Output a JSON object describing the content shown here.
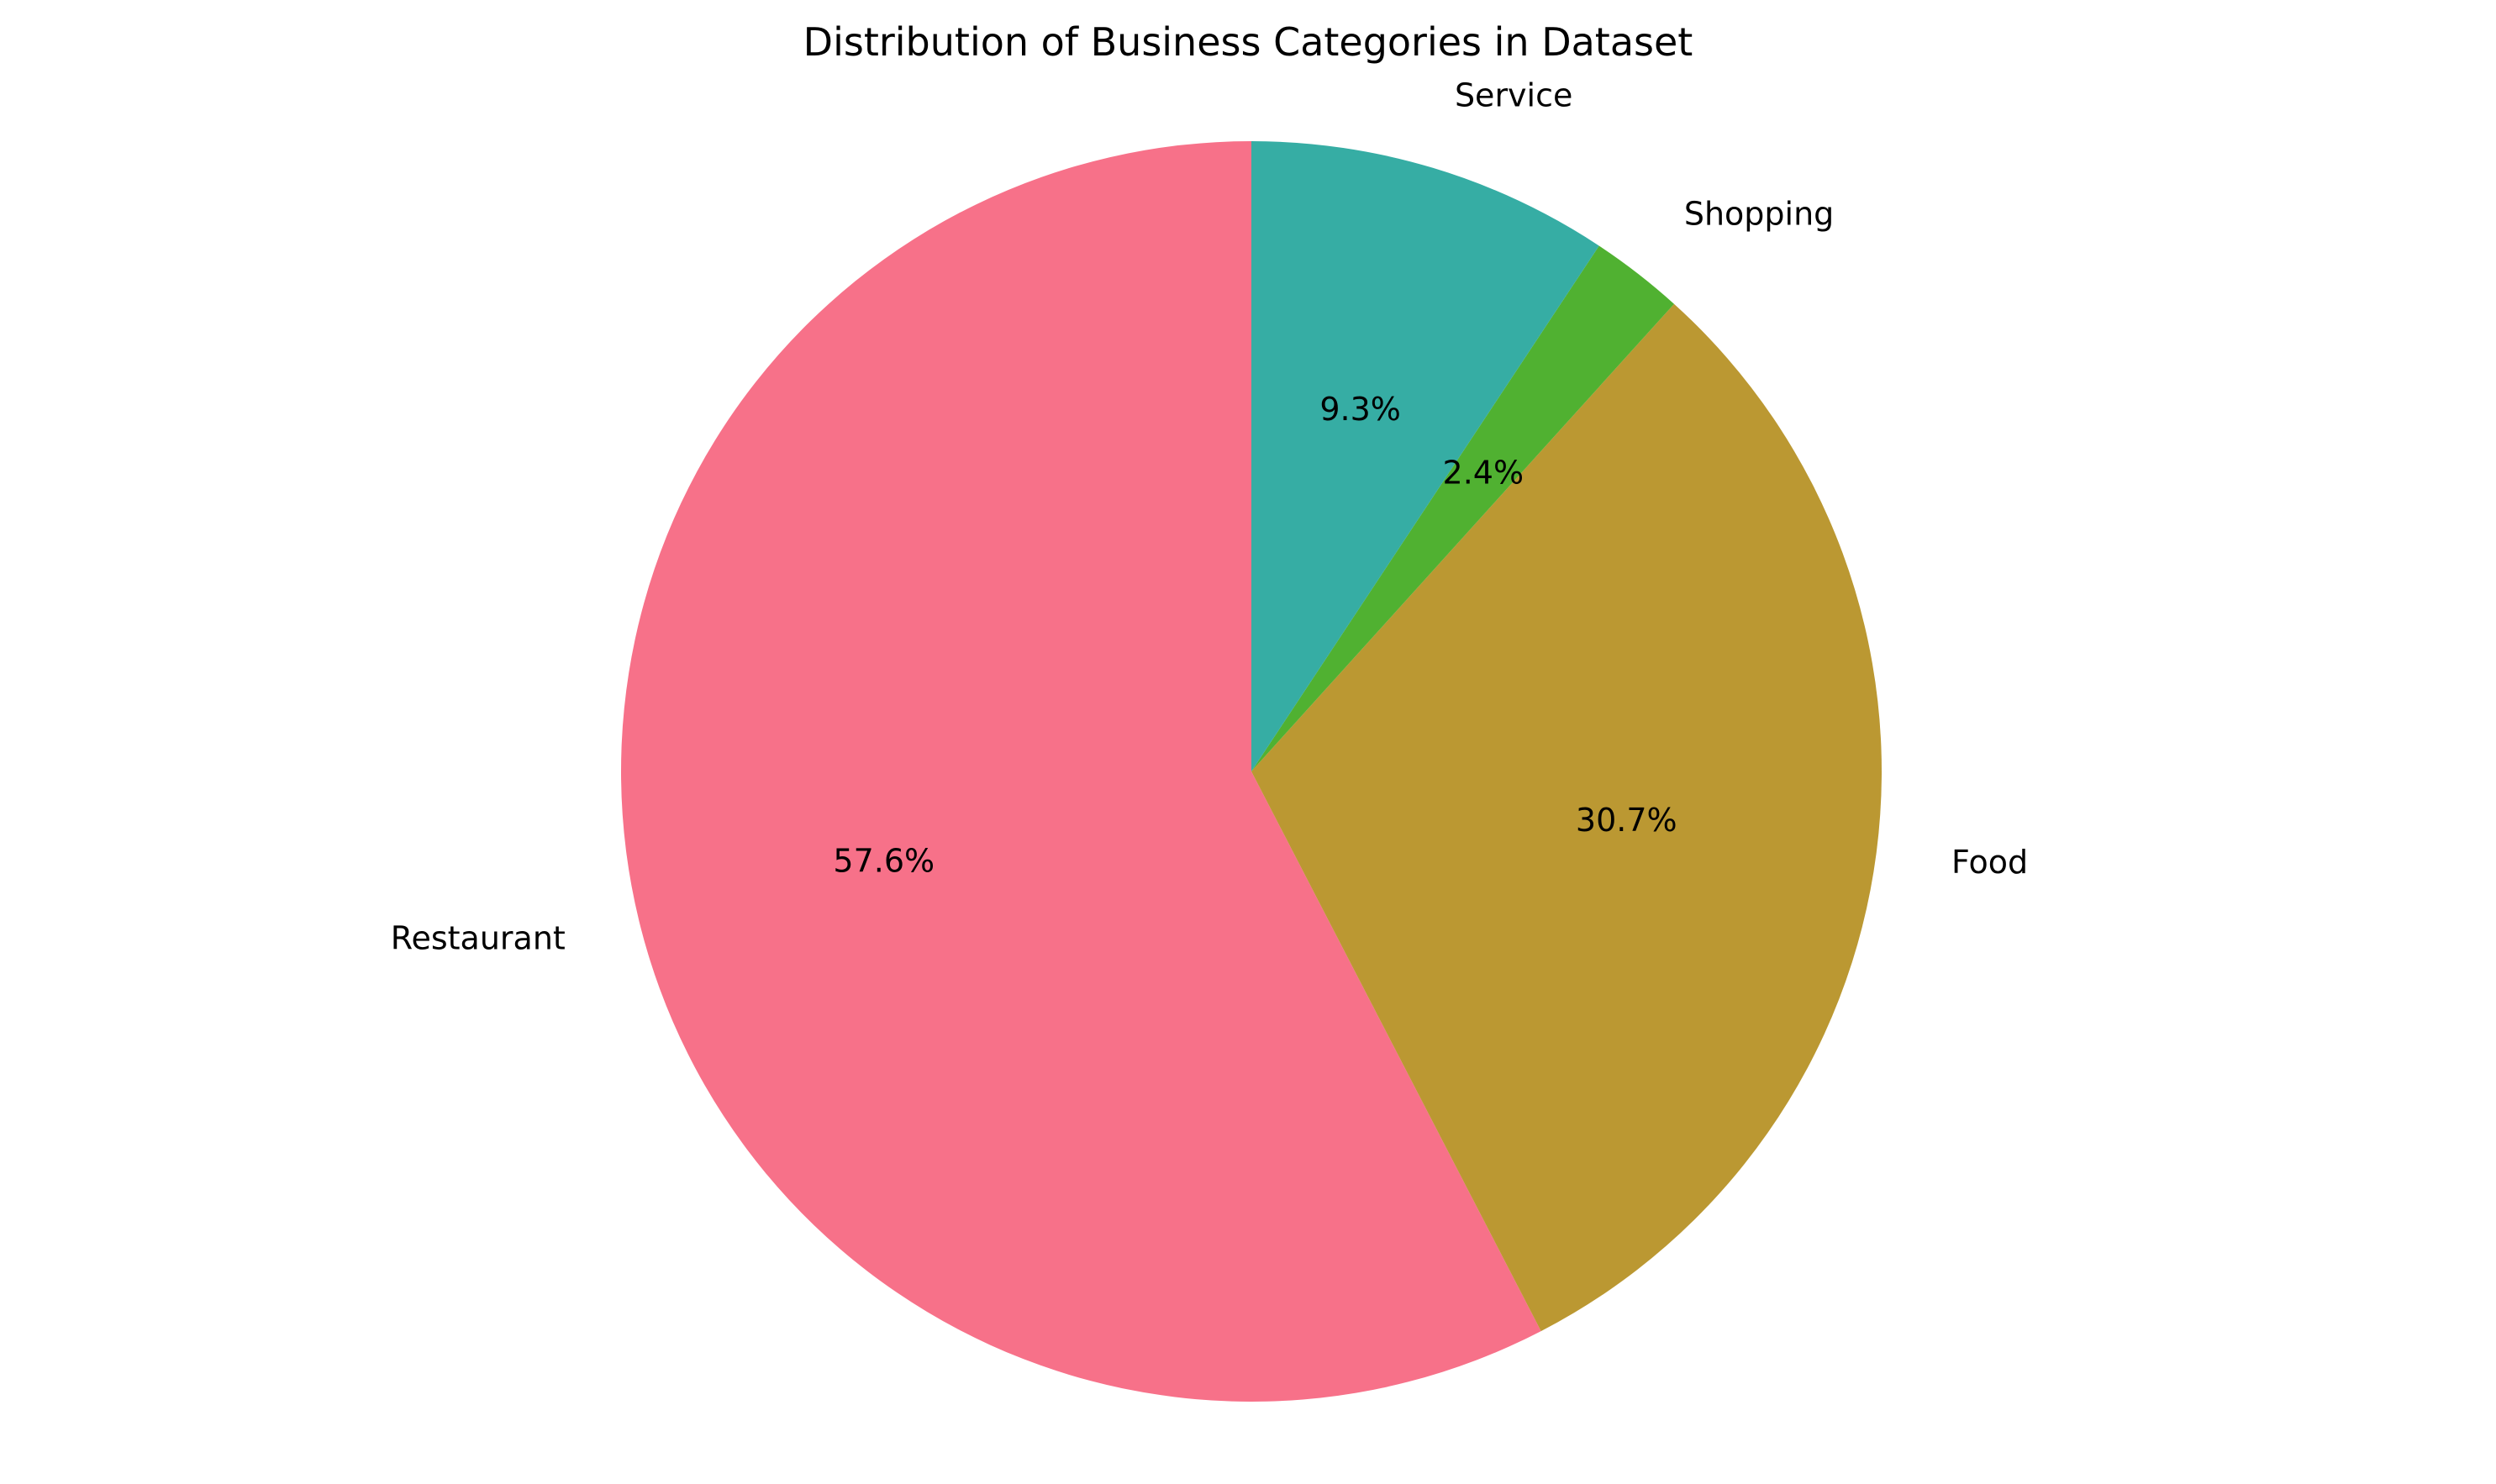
{
  "chart_data": {
    "type": "pie",
    "title": "Distribution of Business Categories in Dataset",
    "start_angle_deg": 90,
    "direction": "counterclockwise",
    "slices": [
      {
        "label": "Restaurant",
        "value": 57.6,
        "pct_label": "57.6%",
        "color": "#f77189"
      },
      {
        "label": "Food",
        "value": 30.7,
        "pct_label": "30.7%",
        "color": "#bb9832"
      },
      {
        "label": "Shopping",
        "value": 2.4,
        "pct_label": "2.4%",
        "color": "#50b131"
      },
      {
        "label": "Service",
        "value": 9.3,
        "pct_label": "9.3%",
        "color": "#36ada4"
      }
    ]
  }
}
